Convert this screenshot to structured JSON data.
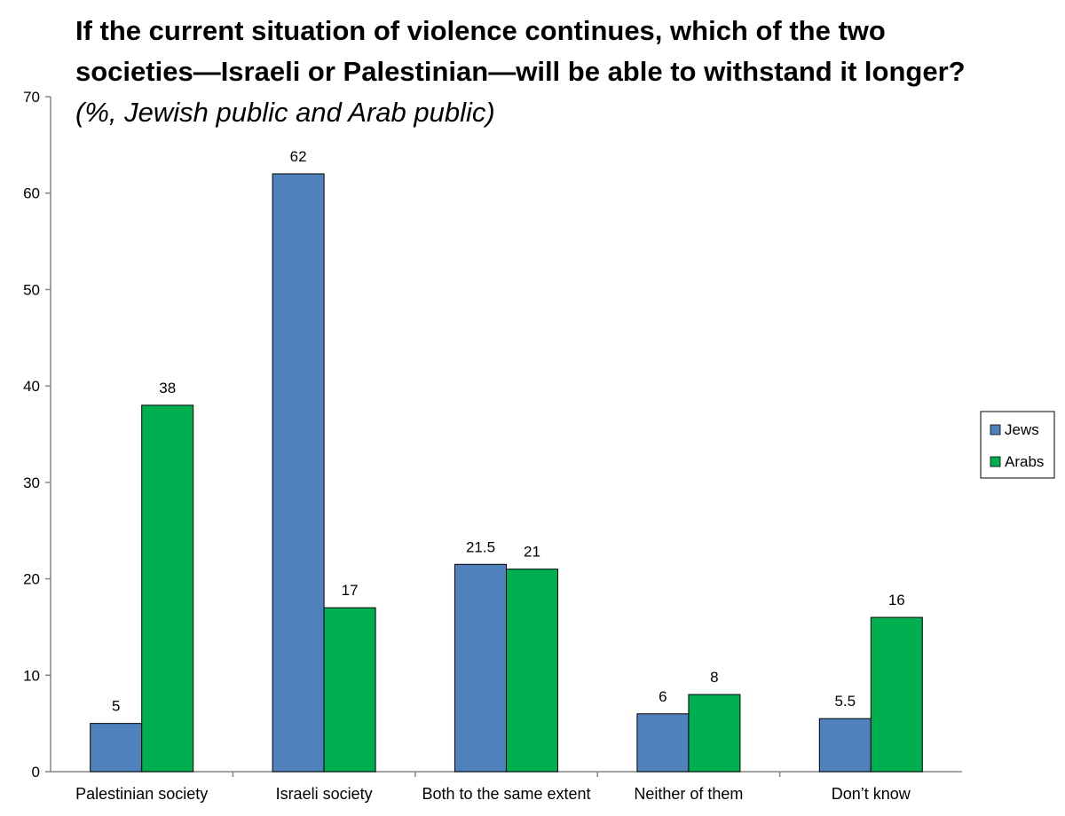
{
  "chart_data": {
    "type": "bar",
    "title_lines": [
      "If the current situation of violence continues, which of the two",
      "societies—Israeli or Palestinian—will be able to withstand it longer?"
    ],
    "subtitle": "(%, Jewish public and Arab public)",
    "categories": [
      "Palestinian society",
      "Israeli society",
      "Both to the same extent",
      "Neither of them",
      "Don’t know"
    ],
    "series": [
      {
        "name": "Jews",
        "color": "#4F81BD",
        "values": [
          5,
          62,
          21.5,
          6,
          5.5
        ]
      },
      {
        "name": "Arabs",
        "color": "#00B050",
        "values": [
          38,
          17,
          21,
          8,
          16
        ]
      }
    ],
    "ylim": [
      0,
      70
    ],
    "yticks": [
      0,
      10,
      20,
      30,
      40,
      50,
      60,
      70
    ],
    "xlabel": "",
    "ylabel": "",
    "grid": false,
    "legend_position": "right"
  }
}
